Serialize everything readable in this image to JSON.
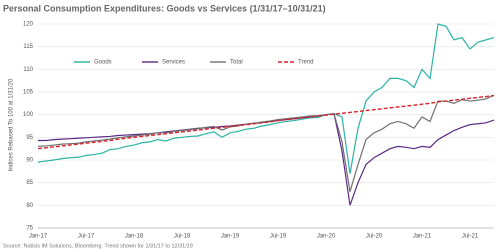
{
  "chart_data": {
    "type": "line",
    "title": "Personal Consumption Expenditures: Goods vs Services (1/31/17–10/31/21)",
    "y_label": "Indices Rebased To 100 at 1/31/20",
    "source": "Source: Natixis IM Solutions, Bloomberg. Trend shown for 1/31/17 to 12/31/19",
    "categories": [
      "Jan-17",
      null,
      null,
      null,
      null,
      null,
      "Jul-17",
      null,
      null,
      null,
      null,
      null,
      "Jan-18",
      null,
      null,
      null,
      null,
      null,
      "Jul-18",
      null,
      null,
      null,
      null,
      null,
      "Jan-19",
      null,
      null,
      null,
      null,
      null,
      "Jul-19",
      null,
      null,
      null,
      null,
      null,
      "Jan-20",
      null,
      null,
      null,
      null,
      null,
      "Jul-20",
      null,
      null,
      null,
      null,
      null,
      "Jan-21",
      null,
      null,
      null,
      null,
      null,
      "Jul-21",
      null,
      null,
      null
    ],
    "series": [
      {
        "name": "Goods",
        "color": "#2bb3a6",
        "dashed": false,
        "values": [
          89.5,
          89.8,
          90.0,
          90.3,
          90.5,
          90.6,
          91.0,
          91.2,
          91.5,
          92.3,
          92.5,
          93.0,
          93.3,
          93.8,
          94.0,
          94.5,
          94.2,
          94.8,
          95.0,
          95.2,
          95.3,
          95.8,
          96.2,
          95.0,
          96.0,
          96.3,
          96.8,
          97.0,
          97.5,
          97.8,
          98.2,
          98.5,
          98.7,
          99.0,
          99.3,
          99.4,
          100,
          100.2,
          99.5,
          87,
          97,
          103,
          105,
          106,
          108,
          108,
          107.5,
          106,
          110,
          108,
          120,
          119.5,
          116.5,
          117,
          114.5,
          116,
          116.5,
          117
        ]
      },
      {
        "name": "Services",
        "color": "#5b2a86",
        "dashed": false,
        "values": [
          94.3,
          94.3,
          94.5,
          94.6,
          94.7,
          94.8,
          94.9,
          95.0,
          95.1,
          95.2,
          95.4,
          95.5,
          95.6,
          95.7,
          95.8,
          96.0,
          96.2,
          96.4,
          96.6,
          96.8,
          97.0,
          97.1,
          97.2,
          97.4,
          97.5,
          97.7,
          97.9,
          98.1,
          98.3,
          98.5,
          98.7,
          98.9,
          99.1,
          99.3,
          99.5,
          99.7,
          100,
          100.2,
          92,
          80,
          85,
          89,
          90.5,
          91.5,
          92.5,
          93,
          92.8,
          92.5,
          93,
          92.8,
          94.5,
          95.5,
          96.5,
          97.2,
          97.8,
          98,
          98.2,
          98.8
        ]
      },
      {
        "name": "Total",
        "color": "#707070",
        "dashed": false,
        "values": [
          93.0,
          93.1,
          93.3,
          93.5,
          93.6,
          93.7,
          94.0,
          94.2,
          94.4,
          94.6,
          94.9,
          95.1,
          95.3,
          95.5,
          95.7,
          96.0,
          96.0,
          96.3,
          96.5,
          96.7,
          96.9,
          97.2,
          97.4,
          96.6,
          97.3,
          97.5,
          97.9,
          98.1,
          98.4,
          98.6,
          98.9,
          99.1,
          99.3,
          99.5,
          99.7,
          99.8,
          100,
          100.2,
          94,
          83,
          89,
          94.5,
          96,
          96.8,
          98,
          98.5,
          98,
          97,
          99.5,
          98.5,
          103,
          103,
          102.5,
          103.3,
          103,
          103.2,
          103.5,
          104.3
        ]
      },
      {
        "name": "Trend",
        "color": "#d7262b",
        "dashed": true,
        "values": [
          92.5,
          92.7,
          92.9,
          93.1,
          93.3,
          93.5,
          93.7,
          93.9,
          94.1,
          94.3,
          94.6,
          94.8,
          95.0,
          95.2,
          95.4,
          95.6,
          95.8,
          96.0,
          96.2,
          96.4,
          96.6,
          96.8,
          97.0,
          97.2,
          97.4,
          97.6,
          97.8,
          98.0,
          98.2,
          98.4,
          98.7,
          98.9,
          99.1,
          99.3,
          99.5,
          99.7,
          99.9,
          100.1,
          100.3,
          100.5,
          100.7,
          100.9,
          101.1,
          101.3,
          101.5,
          101.7,
          101.9,
          102.1,
          102.3,
          102.5,
          102.8,
          103.0,
          103.2,
          103.4,
          103.6,
          103.8,
          104.0,
          104.2
        ]
      }
    ],
    "ylim": [
      75,
      120
    ],
    "yticks": [
      75,
      80,
      85,
      90,
      95,
      100,
      105,
      110,
      115,
      120
    ],
    "grid": true,
    "legend": "top"
  }
}
